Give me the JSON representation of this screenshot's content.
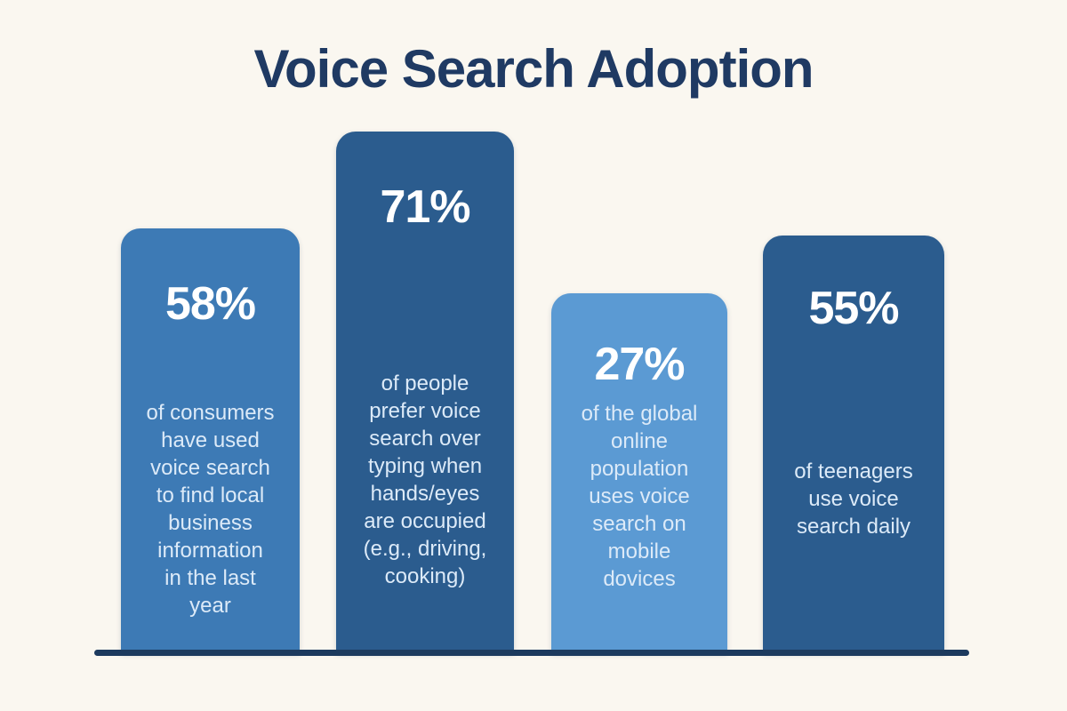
{
  "title": "Voice Search Adoption",
  "colors": {
    "background": "#FAF7F0",
    "title": "#1F3A63",
    "axis_line": "#1C3A5E",
    "value_text": "#FFFFFF",
    "description_text": "#DCEAF8",
    "bar_medium_blue": "#3D7AB5",
    "bar_dark_blue": "#2B5C8E",
    "bar_light_blue": "#5B9AD3"
  },
  "chart_data": {
    "type": "bar",
    "title": "Voice Search Adoption",
    "unit": "%",
    "values": [
      58,
      71,
      27,
      55
    ],
    "categories": [
      "of consumers have used voice search to find local business information in the last year",
      "of people prefer voice search over typing when hands/eyes are occupied (e.g., driving, cooking)",
      "of the global online population uses voice search on mobile dovices",
      "of teenagers use voice search daily"
    ],
    "legend": false,
    "grid": false,
    "xlabel": "",
    "ylabel": "",
    "bars": [
      {
        "value_label": "58%",
        "description": "of consumers\nhave used\nvoice search\nto find local\nbusiness\ninformation\nin the last\nyear",
        "color": "#3D7AB5"
      },
      {
        "value_label": "71%",
        "description": "of people\nprefer voice\nsearch over\ntyping when\nhands/eyes\nare occupied\n(e.g., driving,\ncooking)",
        "color": "#2B5C8E"
      },
      {
        "value_label": "27%",
        "description": "of the global\nonline\npopulation\nuses voice\nsearch on\nmobile\ndovices",
        "color": "#5B9AD3"
      },
      {
        "value_label": "55%",
        "description": "of teenagers\nuse voice\nsearch daily",
        "color": "#2B5C8E"
      }
    ]
  }
}
